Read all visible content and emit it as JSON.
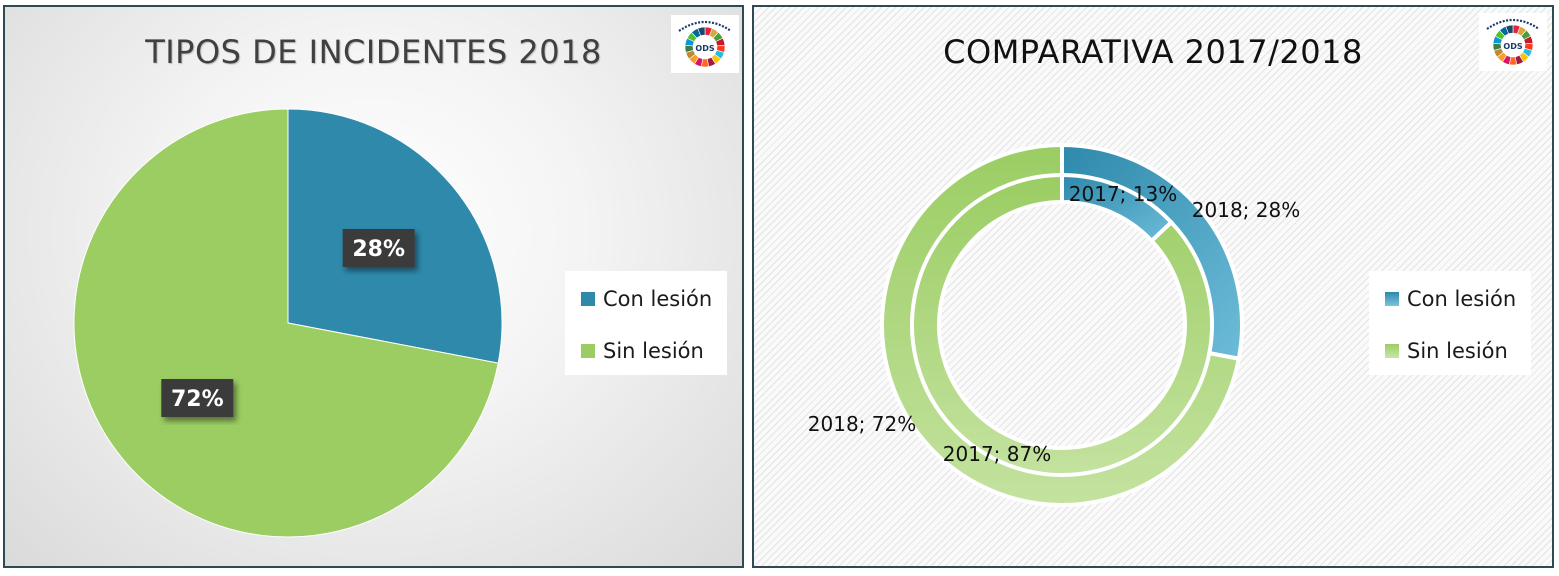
{
  "colors": {
    "con_lesion": "#2e89ab",
    "sin_lesion": "#9bcd63",
    "con_lesion_light": "#6dbcd9",
    "sin_lesion_light": "#c3e29f"
  },
  "logo": {
    "text": "ODS",
    "icon": "ods-wheel-icon"
  },
  "chart_data": [
    {
      "type": "pie",
      "title": "TIPOS DE INCIDENTES 2018",
      "categories": [
        "Con lesión",
        "Sin lesión"
      ],
      "values": [
        28,
        72
      ],
      "data_labels": [
        "28%",
        "72%"
      ],
      "legend": "right"
    },
    {
      "type": "doughnut",
      "title": "COMPARATIVA 2017/2018",
      "categories": [
        "Con lesión",
        "Sin lesión"
      ],
      "series": [
        {
          "name": "2018",
          "values": [
            28,
            72
          ],
          "data_labels": [
            "2018; 28%",
            "2018; 72%"
          ]
        },
        {
          "name": "2017",
          "values": [
            13,
            87
          ],
          "data_labels": [
            "2017; 13%",
            "2017; 87%"
          ]
        }
      ],
      "legend": "right"
    }
  ]
}
